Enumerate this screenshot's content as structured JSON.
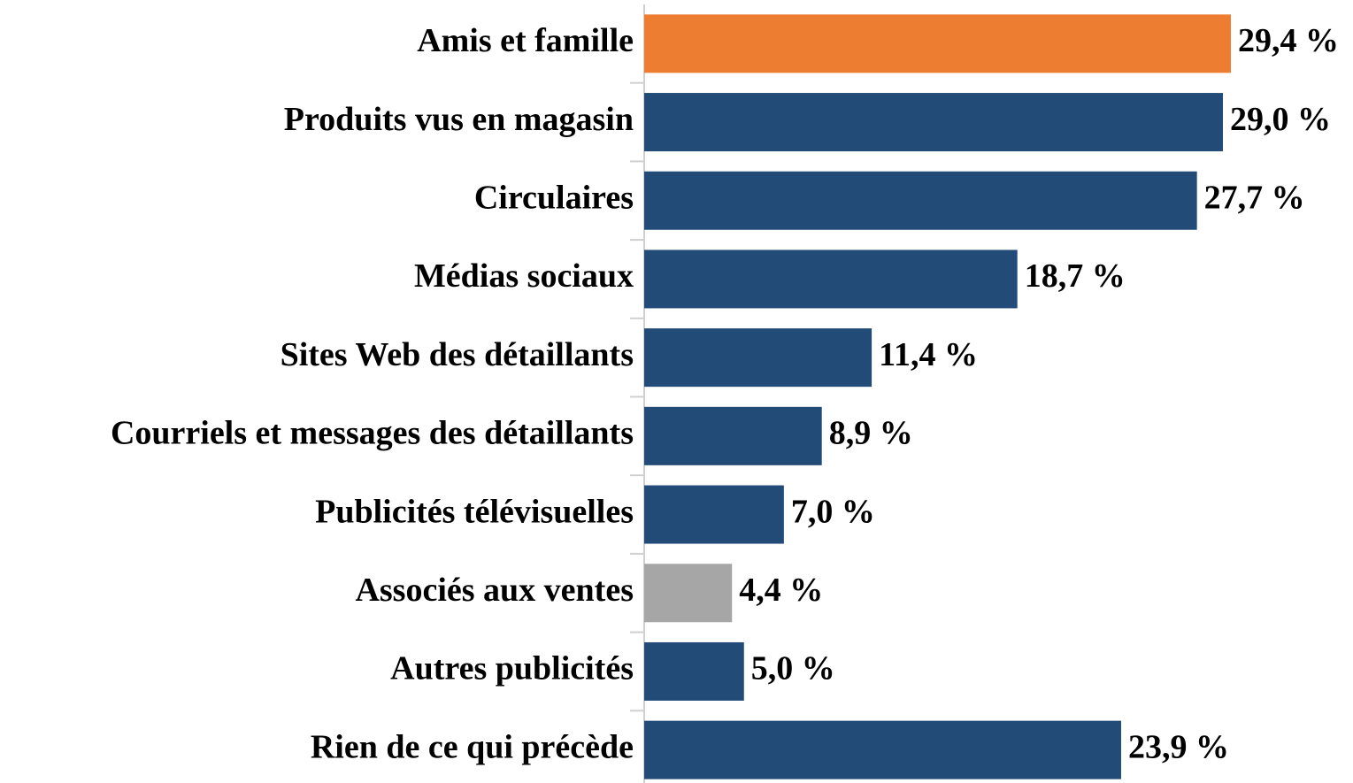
{
  "chart_data": {
    "type": "bar",
    "orientation": "horizontal",
    "categories": [
      "Amis et famille",
      "Produits vus en magasin",
      "Circulaires",
      "Médias sociaux",
      "Sites Web des détaillants",
      "Courriels et messages des détaillants",
      "Publicités télévisuelles",
      "Associés aux ventes",
      "Autres publicités",
      "Rien de ce qui précède"
    ],
    "values": [
      29.4,
      29.0,
      27.7,
      18.7,
      11.4,
      8.9,
      7.0,
      4.4,
      5.0,
      23.9
    ],
    "value_labels": [
      "29,4 %",
      "29,0 %",
      "27,7 %",
      "18,7 %",
      "11,4 %",
      "8,9 %",
      "7,0 %",
      "4,4 %",
      "5,0 %",
      "23,9 %"
    ],
    "colors": [
      "#ed7d31",
      "#234b78",
      "#234b78",
      "#234b78",
      "#234b78",
      "#234b78",
      "#234b78",
      "#a6a6a6",
      "#234b78",
      "#234b78"
    ]
  }
}
